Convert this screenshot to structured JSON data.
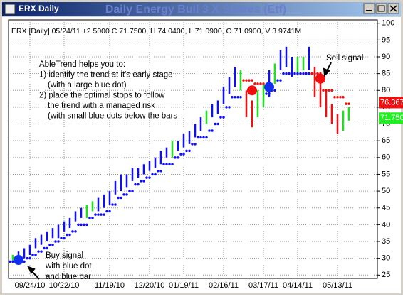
{
  "window_title": "ERX Daily",
  "chart_data": {
    "type": "ohlc",
    "title": "Daily Energy Bull 3 X Shares (Etf)",
    "header": "ERX [Daily] 05/24/11 +2.5000 C 71.7500, H 74.0400, L 71.0900, O 71.0900, V 3.9741M",
    "categories": [
      null,
      null,
      null,
      "09/24/10",
      null,
      null,
      null,
      null,
      null,
      "10/22/10",
      null,
      null,
      null,
      null,
      null,
      null,
      null,
      "11/19/10",
      null,
      null,
      null,
      null,
      null,
      null,
      "12/20/10",
      null,
      null,
      null,
      null,
      null,
      "01/19/11",
      null,
      null,
      null,
      null,
      null,
      null,
      "02/16/11",
      null,
      null,
      null,
      null,
      null,
      null,
      "03/17/11",
      null,
      null,
      null,
      null,
      null,
      "04/14/11",
      null,
      null,
      null,
      null,
      null,
      null,
      "05/13/11",
      null,
      null
    ],
    "high": [
      31,
      32,
      33,
      34,
      36,
      37,
      38,
      39,
      40,
      41,
      42,
      44,
      45,
      46,
      47,
      48,
      49,
      50,
      53,
      55,
      55,
      57,
      57,
      58,
      59,
      60,
      62,
      63,
      65,
      65,
      67,
      68,
      70,
      72,
      74,
      76,
      77,
      81,
      84,
      87,
      86,
      80,
      77,
      80,
      82,
      86,
      88,
      92,
      93,
      90,
      90,
      90,
      93,
      87,
      85,
      80,
      76,
      73,
      74,
      75
    ],
    "low": [
      29,
      30,
      30,
      31,
      33,
      34,
      35,
      36,
      36,
      38,
      39,
      41,
      42,
      42,
      44,
      44,
      45,
      46,
      49,
      50,
      51,
      53,
      54,
      55,
      56,
      57,
      58,
      60,
      60,
      62,
      63,
      64,
      66,
      68,
      70,
      72,
      73,
      76,
      79,
      81,
      80,
      72,
      69,
      72,
      75,
      78,
      82,
      86,
      87,
      84,
      85,
      86,
      86,
      78,
      75,
      72,
      70,
      67,
      68,
      71
    ],
    "colors": [
      "#22dd22",
      "#1010ee",
      "#1010ee",
      "#1010ee",
      "#1010ee",
      "#1010ee",
      "#1010ee",
      "#1010ee",
      "#1010ee",
      "#1010ee",
      "#1010ee",
      "#1010ee",
      "#1010ee",
      "#22dd22",
      "#22dd22",
      "#1010ee",
      "#1010ee",
      "#1010ee",
      "#1010ee",
      "#1010ee",
      "#1010ee",
      "#1010ee",
      "#1010ee",
      "#1010ee",
      "#1010ee",
      "#1010ee",
      "#1010ee",
      "#1010ee",
      "#22dd22",
      "#1010ee",
      "#1010ee",
      "#1010ee",
      "#1010ee",
      "#1010ee",
      "#22dd22",
      "#1010ee",
      "#1010ee",
      "#1010ee",
      "#1010ee",
      "#1010ee",
      "#22dd22",
      "#ee1010",
      "#ee1010",
      "#22dd22",
      "#22dd22",
      "#1010ee",
      "#22dd22",
      "#1010ee",
      "#1010ee",
      "#1010ee",
      "#22dd22",
      "#22dd22",
      "#1010ee",
      "#ee1010",
      "#ee1010",
      "#ee1010",
      "#ee1010",
      "#ee1010",
      "#22dd22",
      "#22dd22"
    ],
    "series": [
      {
        "name": "up stops",
        "color": "#1010ee",
        "values": [
          29,
          29,
          29,
          30,
          31,
          32,
          33,
          34,
          35,
          36,
          37,
          38,
          40,
          40,
          42,
          43,
          43,
          44,
          46,
          48,
          49,
          50,
          52,
          53,
          54,
          55,
          56,
          58,
          58,
          60,
          61,
          62,
          64,
          66,
          66,
          68,
          70,
          72,
          75,
          78,
          78,
          null,
          null,
          null,
          null,
          79,
          80,
          83,
          85,
          85,
          85,
          85,
          85,
          null,
          null,
          null,
          null,
          null,
          null,
          null
        ]
      },
      {
        "name": "down stops",
        "color": "#ee1010",
        "values": [
          null,
          null,
          null,
          null,
          null,
          null,
          null,
          null,
          null,
          null,
          null,
          null,
          null,
          null,
          null,
          null,
          null,
          null,
          null,
          null,
          null,
          null,
          null,
          null,
          null,
          null,
          null,
          null,
          null,
          null,
          null,
          null,
          null,
          null,
          null,
          null,
          null,
          null,
          null,
          null,
          null,
          83,
          83,
          82,
          82,
          null,
          null,
          null,
          null,
          null,
          null,
          null,
          null,
          85,
          85,
          80,
          80,
          78,
          78,
          76
        ]
      }
    ],
    "signals": [
      {
        "index": 1,
        "value": 29.5,
        "color": "#1030ee"
      },
      {
        "index": 42,
        "value": 80,
        "color": "#ee1010"
      },
      {
        "index": 45,
        "value": 81,
        "color": "#1030ee"
      },
      {
        "index": 54,
        "value": 83.5,
        "color": "#ee1010"
      }
    ],
    "price_labels": [
      {
        "value": 76.3671,
        "label": "76.3671",
        "color": "#ee1010"
      },
      {
        "value": 71.75,
        "label": "71.7500",
        "color": "#22ee22"
      }
    ],
    "ylim": [
      24,
      101
    ],
    "yticks": [
      25,
      30,
      35,
      40,
      45,
      50,
      55,
      60,
      65,
      70,
      75,
      80,
      85,
      90,
      95,
      100
    ],
    "grid": true,
    "annotations": {
      "abletrend": [
        "AbleTrend helps you to:",
        "1) identify the trend at it's early stage",
        "(with a large blue dot)",
        "2) place the optimal stops to follow",
        "the trend with a managed risk",
        "(with small blue dots below the bars"
      ],
      "buy": [
        "Buy signal",
        "with blue dot",
        "and blue bar"
      ],
      "sell": "Sell signal"
    }
  }
}
